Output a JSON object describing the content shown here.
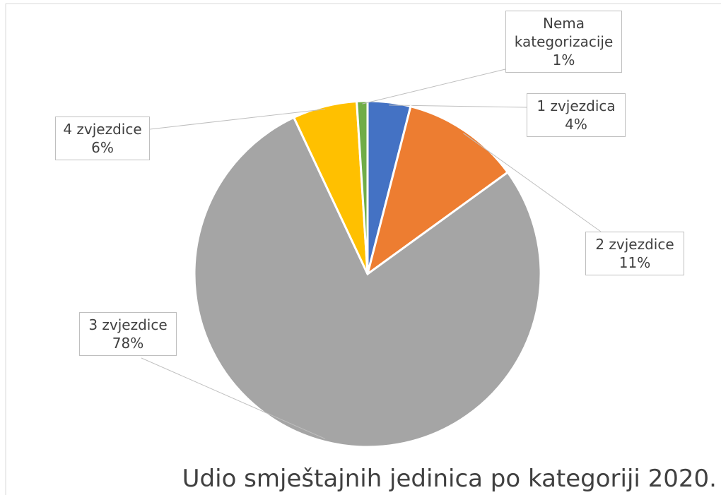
{
  "chart_data": {
    "type": "pie",
    "title": "Udio smještajnih jedinica po kategoriji 2020.",
    "categories": [
      "1 zvjezdica",
      "2 zvjezdice",
      "3 zvjezdice",
      "4 zvjezdice",
      "Nema kategorizacije"
    ],
    "values": [
      4,
      11,
      78,
      6,
      1
    ],
    "value_labels": [
      "4%",
      "11%",
      "78%",
      "6%",
      "1%"
    ],
    "colors": [
      "#4472c4",
      "#ed7d31",
      "#a5a5a5",
      "#ffc000",
      "#70ad47"
    ]
  }
}
